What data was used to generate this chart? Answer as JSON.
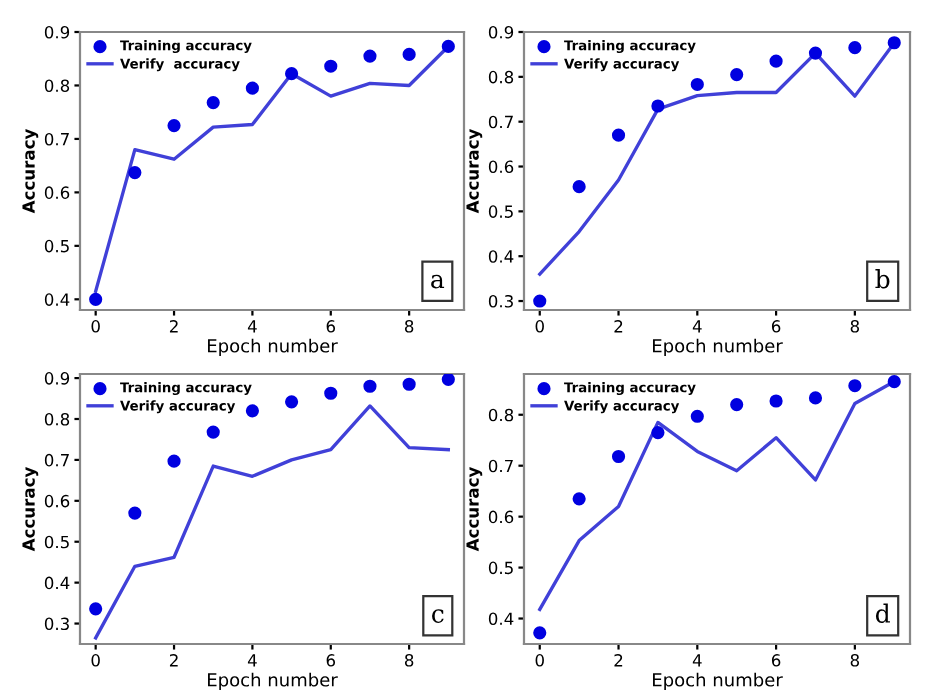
{
  "chart_data": [
    {
      "type": "line",
      "xlabel": "Epoch number",
      "ylabel": "Accuracy",
      "x": [
        0,
        1,
        2,
        3,
        4,
        5,
        6,
        7,
        8,
        9
      ],
      "xlim": [
        -0.4,
        9.4
      ],
      "xticks": [
        0,
        2,
        4,
        6,
        8
      ],
      "ylim": [
        0.38,
        0.9
      ],
      "yticks": [
        0.4,
        0.5,
        0.6,
        0.7,
        0.8,
        0.9
      ],
      "legend": "top left",
      "annotations": [
        "a"
      ],
      "series": [
        {
          "name": "Training accuracy",
          "type": "scatter",
          "marker": "circle",
          "color": "#0000e0",
          "values": [
            0.4,
            0.637,
            0.725,
            0.768,
            0.795,
            0.822,
            0.836,
            0.855,
            0.858,
            0.873
          ]
        },
        {
          "name": "Verify  accuracy",
          "color": "#4040d8",
          "values": [
            0.415,
            0.68,
            0.662,
            0.722,
            0.727,
            0.822,
            0.78,
            0.804,
            0.8,
            0.873
          ]
        }
      ]
    },
    {
      "type": "line",
      "xlabel": "Epoch number",
      "ylabel": "Accuracy",
      "x": [
        0,
        1,
        2,
        3,
        4,
        5,
        6,
        7,
        8,
        9
      ],
      "xlim": [
        -0.4,
        9.4
      ],
      "xticks": [
        0,
        2,
        4,
        6,
        8
      ],
      "ylim": [
        0.28,
        0.9
      ],
      "yticks": [
        0.3,
        0.4,
        0.5,
        0.6,
        0.7,
        0.8,
        0.9
      ],
      "legend": "top left",
      "annotations": [
        "b"
      ],
      "series": [
        {
          "name": "Training accuracy",
          "type": "scatter",
          "marker": "circle",
          "color": "#0000e0",
          "values": [
            0.3,
            0.555,
            0.67,
            0.735,
            0.783,
            0.805,
            0.835,
            0.853,
            0.865,
            0.876
          ]
        },
        {
          "name": "Verify accuracy",
          "color": "#4040d8",
          "values": [
            0.36,
            0.455,
            0.57,
            0.728,
            0.758,
            0.765,
            0.765,
            0.853,
            0.757,
            0.876
          ]
        }
      ]
    },
    {
      "type": "line",
      "xlabel": "Epoch number",
      "ylabel": "Accuracy",
      "x": [
        0,
        1,
        2,
        3,
        4,
        5,
        6,
        7,
        8,
        9
      ],
      "xlim": [
        -0.4,
        9.4
      ],
      "xticks": [
        0,
        2,
        4,
        6,
        8
      ],
      "ylim": [
        0.25,
        0.91
      ],
      "yticks": [
        0.3,
        0.4,
        0.5,
        0.6,
        0.7,
        0.8,
        0.9
      ],
      "legend": "top left",
      "annotations": [
        "c"
      ],
      "series": [
        {
          "name": "Training accuracy",
          "type": "scatter",
          "marker": "circle",
          "color": "#0000e0",
          "values": [
            0.336,
            0.57,
            0.697,
            0.768,
            0.82,
            0.842,
            0.863,
            0.88,
            0.885,
            0.897
          ]
        },
        {
          "name": "Verify accuracy",
          "color": "#4040d8",
          "values": [
            0.265,
            0.44,
            0.462,
            0.685,
            0.66,
            0.7,
            0.725,
            0.832,
            0.73,
            0.725
          ]
        }
      ]
    },
    {
      "type": "line",
      "xlabel": "Epoch number",
      "ylabel": "Accuracy",
      "x": [
        0,
        1,
        2,
        3,
        4,
        5,
        6,
        7,
        8,
        9
      ],
      "xlim": [
        -0.4,
        9.4
      ],
      "xticks": [
        0,
        2,
        4,
        6,
        8
      ],
      "ylim": [
        0.35,
        0.88
      ],
      "yticks": [
        0.4,
        0.5,
        0.6,
        0.7,
        0.8
      ],
      "legend": "top left",
      "annotations": [
        "d"
      ],
      "series": [
        {
          "name": "Training accuracy",
          "type": "scatter",
          "marker": "circle",
          "color": "#0000e0",
          "values": [
            0.372,
            0.635,
            0.718,
            0.765,
            0.797,
            0.82,
            0.827,
            0.833,
            0.857,
            0.865
          ]
        },
        {
          "name": "Verify accuracy",
          "color": "#4040d8",
          "values": [
            0.418,
            0.553,
            0.62,
            0.785,
            0.728,
            0.69,
            0.755,
            0.672,
            0.822,
            0.865
          ]
        }
      ]
    }
  ]
}
